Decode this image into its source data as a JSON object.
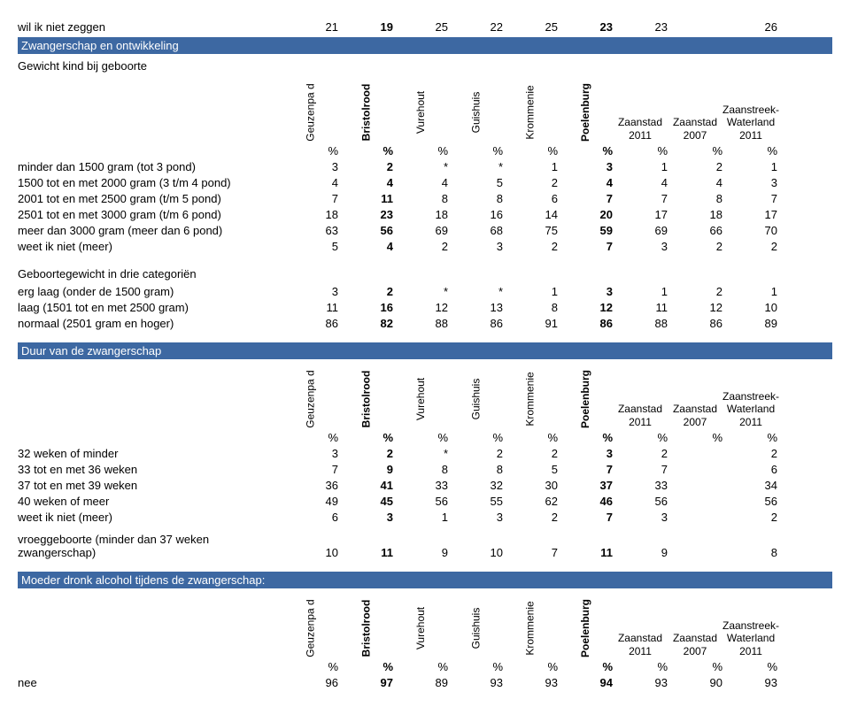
{
  "toprow": {
    "label": "wil ik niet zeggen",
    "vals": [
      "21",
      "19",
      "25",
      "22",
      "25",
      "23",
      "23",
      "",
      "26"
    ]
  },
  "section1": "Zwangerschap en ontwikkeling",
  "subhead1": "Gewicht kind bij geboorte",
  "header": {
    "rot": [
      "Geuzenpa d",
      "Bristolrood",
      "Vurehout",
      "Guishuis",
      "Krommenie",
      "Poelenburg"
    ],
    "tail": [
      "Zaanstad 2011",
      "Zaanstad 2007",
      "Zaanstreek- Waterland 2011"
    ]
  },
  "pctrow": [
    "%",
    "%",
    "%",
    "%",
    "%",
    "%",
    "%",
    "%",
    "%"
  ],
  "t1": [
    {
      "label": "minder dan 1500 gram (tot 3 pond)",
      "vals": [
        "3",
        "2",
        "*",
        "*",
        "1",
        "3",
        "1",
        "2",
        "1"
      ]
    },
    {
      "label": "1500 tot en met 2000 gram (3 t/m 4 pond)",
      "vals": [
        "4",
        "4",
        "4",
        "5",
        "2",
        "4",
        "4",
        "4",
        "3"
      ]
    },
    {
      "label": "2001 tot en met 2500 gram (t/m 5 pond)",
      "vals": [
        "7",
        "11",
        "8",
        "8",
        "6",
        "7",
        "7",
        "8",
        "7"
      ]
    },
    {
      "label": "2501 tot en met 3000 gram (t/m 6 pond)",
      "vals": [
        "18",
        "23",
        "18",
        "16",
        "14",
        "20",
        "17",
        "18",
        "17"
      ]
    },
    {
      "label": "meer dan 3000 gram (meer dan 6 pond)",
      "vals": [
        "63",
        "56",
        "69",
        "68",
        "75",
        "59",
        "69",
        "66",
        "70"
      ]
    },
    {
      "label": "weet ik niet (meer)",
      "vals": [
        "5",
        "4",
        "2",
        "3",
        "2",
        "7",
        "3",
        "2",
        "2"
      ]
    }
  ],
  "subhead2": "Geboortegewicht in drie categoriën",
  "t2": [
    {
      "label": "erg laag (onder de 1500 gram)",
      "vals": [
        "3",
        "2",
        "*",
        "*",
        "1",
        "3",
        "1",
        "2",
        "1"
      ]
    },
    {
      "label": "laag (1501 tot en met 2500 gram)",
      "vals": [
        "11",
        "16",
        "12",
        "13",
        "8",
        "12",
        "11",
        "12",
        "10"
      ]
    },
    {
      "label": "normaal (2501 gram en hoger)",
      "vals": [
        "86",
        "82",
        "88",
        "86",
        "91",
        "86",
        "88",
        "86",
        "89"
      ]
    }
  ],
  "section2": "Duur van de zwangerschap",
  "t3": [
    {
      "label": "32 weken of minder",
      "vals": [
        "3",
        "2",
        "*",
        "2",
        "2",
        "3",
        "2",
        "",
        "2"
      ]
    },
    {
      "label": "33 tot en met 36 weken",
      "vals": [
        "7",
        "9",
        "8",
        "8",
        "5",
        "7",
        "7",
        "",
        "6"
      ]
    },
    {
      "label": "37 tot en met 39 weken",
      "vals": [
        "36",
        "41",
        "33",
        "32",
        "30",
        "37",
        "33",
        "",
        "34"
      ]
    },
    {
      "label": "40 weken of meer",
      "vals": [
        "49",
        "45",
        "56",
        "55",
        "62",
        "46",
        "56",
        "",
        "56"
      ]
    },
    {
      "label": "weet ik niet (meer)",
      "vals": [
        "6",
        "3",
        "1",
        "3",
        "2",
        "7",
        "3",
        "",
        "2"
      ]
    }
  ],
  "freerow": {
    "label": "vroeggeboorte (minder dan 37 weken zwangerschap)",
    "vals": [
      "10",
      "11",
      "9",
      "10",
      "7",
      "11",
      "9",
      "",
      "8"
    ]
  },
  "section3": "Moeder dronk alcohol tijdens de zwangerschap:",
  "t4": [
    {
      "label": "nee",
      "vals": [
        "96",
        "97",
        "89",
        "93",
        "93",
        "94",
        "93",
        "90",
        "93"
      ]
    }
  ],
  "boldCols": [
    1,
    5
  ]
}
